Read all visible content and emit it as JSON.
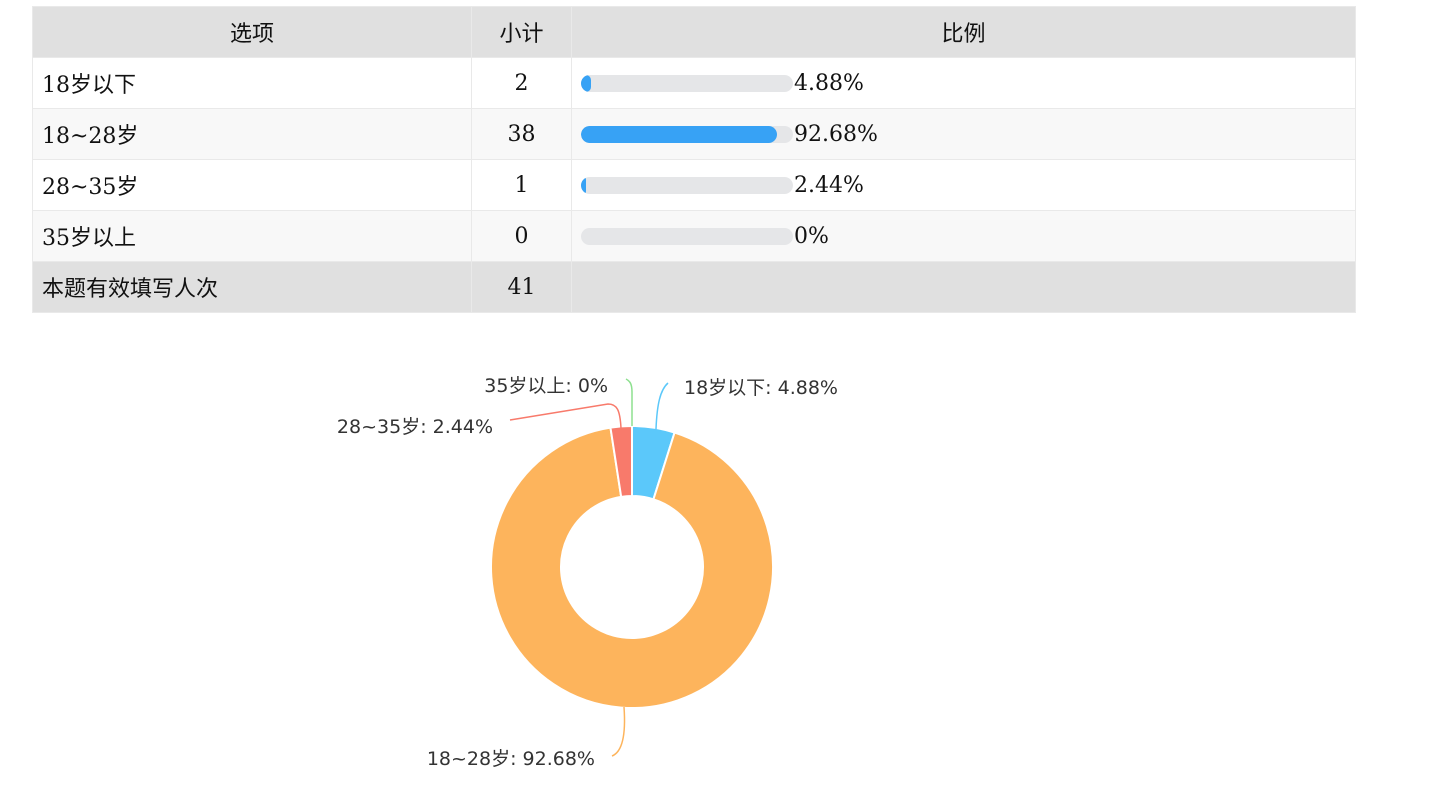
{
  "table": {
    "headers": {
      "option": "选项",
      "count": "小计",
      "ratio": "比例"
    },
    "rows": [
      {
        "option": "18岁以下",
        "count": "2",
        "percent": "4.88%",
        "fraction": 0.0488
      },
      {
        "option": "18~28岁",
        "count": "38",
        "percent": "92.68%",
        "fraction": 0.9268
      },
      {
        "option": "28~35岁",
        "count": "1",
        "percent": "2.44%",
        "fraction": 0.0244
      },
      {
        "option": "35岁以上",
        "count": "0",
        "percent": "0%",
        "fraction": 0
      }
    ],
    "total": {
      "label": "本题有效填写人次",
      "count": "41"
    }
  },
  "chart_data": {
    "type": "pie",
    "donut": true,
    "categories": [
      "18岁以下",
      "18~28岁",
      "28~35岁",
      "35岁以上"
    ],
    "values": [
      4.88,
      92.68,
      2.44,
      0
    ],
    "labels": [
      "18岁以下: 4.88%",
      "18~28岁: 92.68%",
      "28~35岁: 2.44%",
      "35岁以上: 0%"
    ],
    "colors": [
      "#5bc8fa",
      "#fdb45c",
      "#f87a6b",
      "#8de08f"
    ],
    "title": ""
  },
  "colors": {
    "bar_fill": "#37a2f5",
    "bar_track": "#e5e6e8",
    "header_bg": "#e0e0e0"
  }
}
